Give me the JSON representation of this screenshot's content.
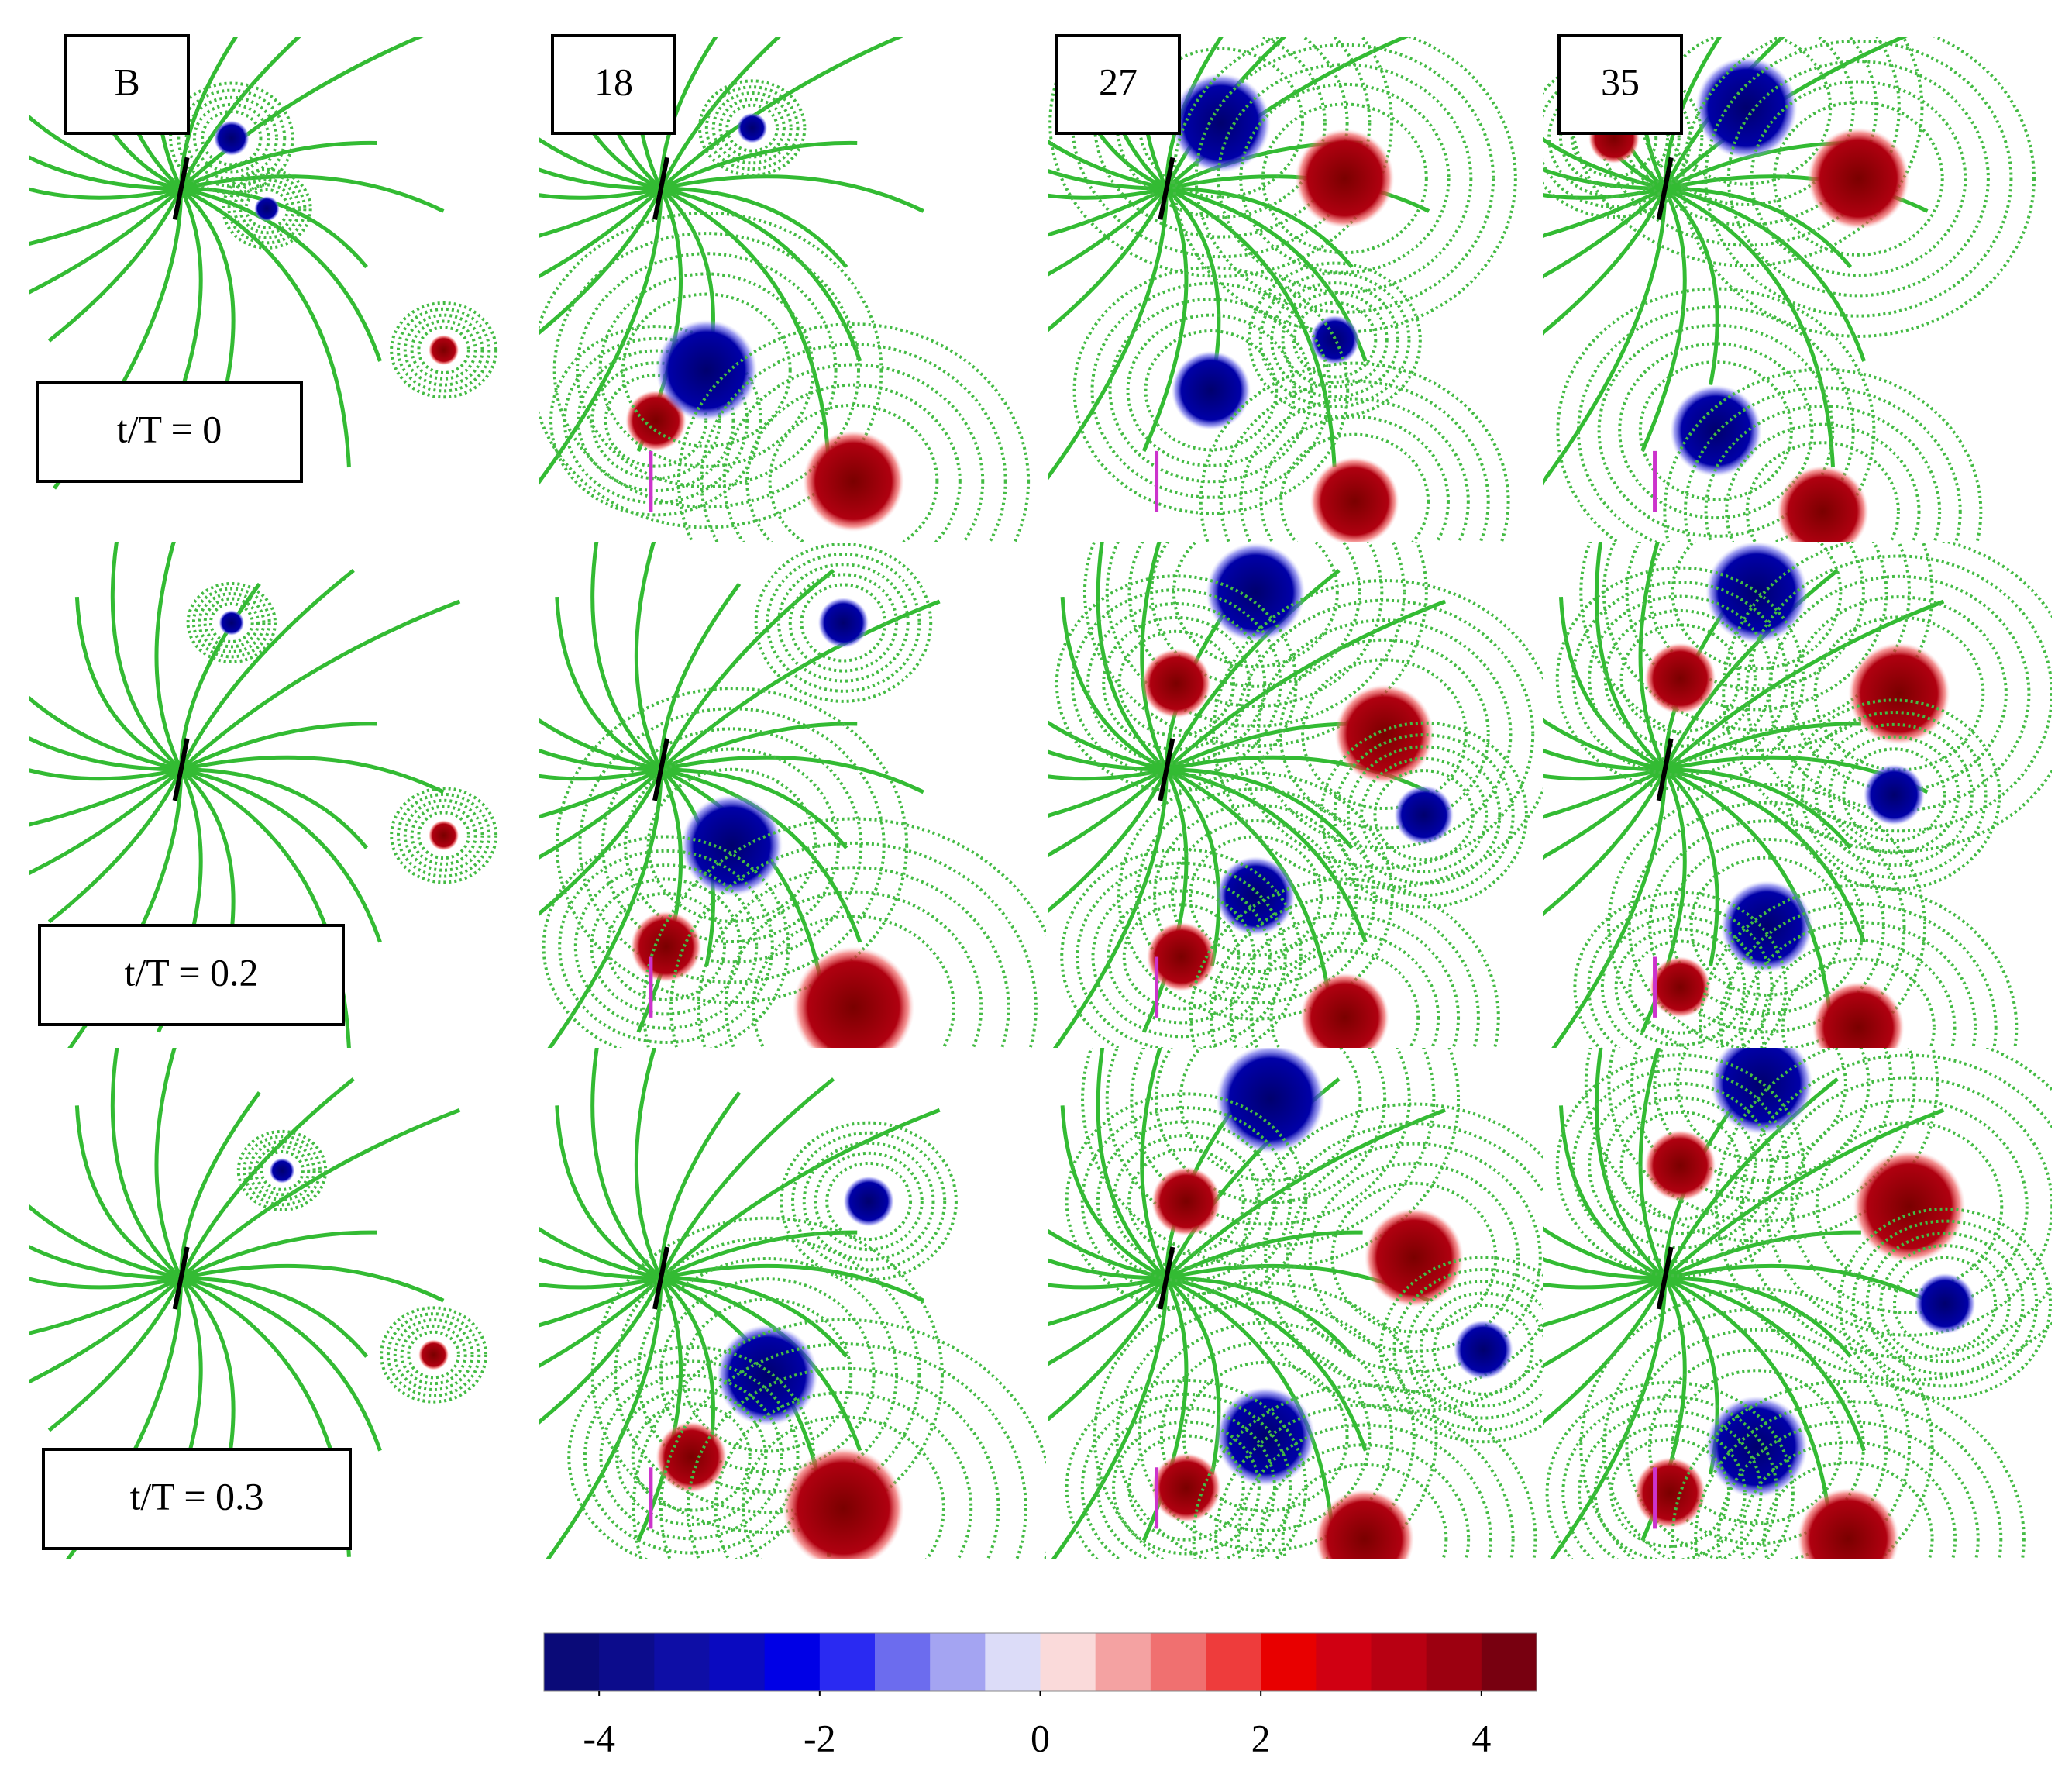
{
  "panels": {
    "columns": [
      "B",
      "18",
      "27",
      "35"
    ],
    "rows": [
      "t/T = 0",
      "t/T = 0.2",
      "t/T = 0.3"
    ]
  },
  "colorbar": {
    "lim": [
      -4.5,
      4.5
    ],
    "ticks": [
      -4,
      -2,
      0,
      2,
      4
    ],
    "colors": [
      "#0a0a78",
      "#0c0c8c",
      "#0e0ea6",
      "#0a0ac0",
      "#0000e6",
      "#2a2af2",
      "#6c6cee",
      "#a4a4f2",
      "#dcdcf8",
      "#fadada",
      "#f4a2a2",
      "#f07070",
      "#ee3c3c",
      "#e80000",
      "#d00012",
      "#b80012",
      "#9c0010",
      "#780010"
    ]
  }
}
